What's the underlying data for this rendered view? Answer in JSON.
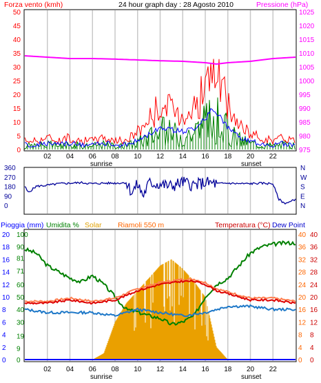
{
  "colors": {
    "background": "#ffffff",
    "frame": "#000000",
    "grid_hour": "#c8c8c8",
    "wind": "#ff0000",
    "wind_avg": "#0000ff",
    "wind_green": "#008000",
    "pressure": "#ff00ff",
    "direction": "#000099",
    "rain": "#0000ff",
    "humidity": "#008000",
    "solar": "#eaa000",
    "windchill": "#ff6600",
    "temperature": "#cc0000",
    "temperature_line": "#ff0000",
    "dewpoint": "#0000cc",
    "dewpoint_line": "#1e90ff"
  },
  "header": {
    "title": "24 hour graph day : 28 Agosto 2010",
    "wind_label": "Forza vento (kmh)",
    "pressure_label": "Pressione (hPa)"
  },
  "mid_panel": {
    "left_ticks": [
      "360",
      "270",
      "180",
      "90",
      "0"
    ],
    "right_ticks": [
      "N",
      "W",
      "S",
      "E",
      "N"
    ]
  },
  "bottom_header": {
    "rain_label": "Pioggia (mm)",
    "humidity_label": "Umidita %",
    "solar_label": "Solar",
    "windchill_label": "Riamoli 550 m",
    "temperature_label": "Temperatura (°C)",
    "dewpoint_label": "Dew Point"
  },
  "x_axis": {
    "top_labels": [
      "02",
      "04",
      "06",
      "08",
      "10",
      "12",
      "14",
      "16",
      "18",
      "20",
      "22"
    ],
    "top_sunrise": "sunrise",
    "top_sunset": "sunset",
    "bottom_labels": [
      "02",
      "04",
      "06",
      "08",
      "10",
      "12",
      "14",
      "16",
      "18",
      "20",
      "22"
    ],
    "bottom_sunrise": "sunrise",
    "bottom_sunset": "sunset"
  },
  "chart_data": [
    {
      "type": "line",
      "title": "24 hour graph day : 28 Agosto 2010",
      "x": {
        "unit": "hour",
        "range": [
          0,
          24
        ],
        "tick_labels": [
          "02",
          "04",
          "06",
          "08",
          "10",
          "12",
          "14",
          "16",
          "18",
          "20",
          "22"
        ]
      },
      "y_left": {
        "label": "Forza vento (kmh)",
        "range": [
          0,
          50
        ],
        "ticks": [
          0,
          5,
          10,
          15,
          20,
          25,
          30,
          35,
          40,
          45,
          50
        ]
      },
      "y_right": {
        "label": "Pressione (hPa)",
        "range": [
          975,
          1025
        ],
        "ticks": [
          975,
          980,
          985,
          990,
          995,
          1000,
          1005,
          1010,
          1015,
          1020,
          1025
        ]
      },
      "series": [
        {
          "name": "Forza vento (kmh)",
          "axis": "left",
          "x": [
            0,
            1,
            2,
            3,
            4,
            5,
            6,
            7,
            8,
            9,
            10,
            11,
            12,
            13,
            14,
            15,
            16,
            16.5,
            17,
            17.5,
            18,
            19,
            20,
            21,
            22,
            23,
            24
          ],
          "values": [
            3,
            3,
            4,
            3,
            4,
            3,
            3,
            4,
            3,
            3,
            6,
            10,
            15,
            13,
            12,
            14,
            20,
            26,
            24,
            20,
            14,
            8,
            5,
            4,
            3,
            4,
            3
          ]
        },
        {
          "name": "Pressione (hPa)",
          "axis": "right",
          "x": [
            0,
            2,
            4,
            6,
            8,
            10,
            12,
            14,
            16,
            17,
            18,
            20,
            22,
            24
          ],
          "values": [
            1009,
            1008.5,
            1008,
            1008,
            1007.8,
            1007.5,
            1007.2,
            1007,
            1006.5,
            1006,
            1006.5,
            1007,
            1008,
            1008.5
          ]
        }
      ]
    },
    {
      "type": "line",
      "x": {
        "unit": "hour",
        "range": [
          0,
          24
        ]
      },
      "y_left": {
        "range": [
          0,
          360
        ],
        "ticks": [
          0,
          90,
          180,
          270,
          360
        ]
      },
      "y_right": {
        "ticks": [
          "N",
          "E",
          "S",
          "W",
          "N"
        ]
      },
      "series": [
        {
          "x": [
            0,
            0.3,
            1,
            2,
            3,
            4,
            5,
            6,
            7,
            8,
            9,
            9.5,
            10,
            10.5,
            11,
            12,
            13,
            14,
            15,
            16,
            17,
            18,
            19,
            20,
            21,
            22,
            22.5,
            23,
            23.5,
            24
          ],
          "values": [
            180,
            120,
            180,
            190,
            205,
            210,
            215,
            205,
            210,
            210,
            215,
            120,
            200,
            90,
            210,
            200,
            180,
            220,
            190,
            215,
            205,
            210,
            205,
            205,
            210,
            205,
            60,
            20,
            30,
            60
          ]
        }
      ]
    },
    {
      "type": "line",
      "x": {
        "unit": "hour",
        "range": [
          0,
          24
        ],
        "tick_labels": [
          "02",
          "04",
          "06",
          "08",
          "10",
          "12",
          "14",
          "16",
          "18",
          "20",
          "22"
        ]
      },
      "y_left_rain": {
        "label": "Pioggia (mm)",
        "range": [
          0,
          20
        ],
        "ticks": [
          0,
          2,
          4,
          6,
          8,
          10,
          12,
          14,
          16,
          18,
          20
        ]
      },
      "y_left_humidity": {
        "label": "Umidita %",
        "range": [
          0,
          100
        ],
        "ticks": [
          0,
          9,
          19,
          30,
          40,
          50,
          60,
          71,
          81,
          90,
          100
        ]
      },
      "y_right_windchill": {
        "label": "Riamoli 550 m",
        "range": [
          0,
          40
        ],
        "ticks": [
          0,
          4,
          8,
          12,
          16,
          20,
          24,
          28,
          32,
          36,
          40
        ]
      },
      "y_right_temperature": {
        "label": "Temperatura (°C)",
        "range": [
          0,
          40
        ],
        "ticks": [
          0,
          4,
          8,
          12,
          16,
          20,
          24,
          28,
          32,
          36,
          40
        ]
      },
      "series": [
        {
          "name": "Umidita %",
          "x": [
            0,
            1,
            2,
            3,
            4,
            5,
            6,
            7,
            8,
            9,
            10,
            11,
            12,
            13,
            14,
            15,
            16,
            17,
            18,
            19,
            20,
            21,
            22,
            23,
            24
          ],
          "values": [
            88,
            85,
            75,
            70,
            65,
            62,
            67,
            60,
            50,
            40,
            38,
            35,
            33,
            28,
            30,
            35,
            50,
            60,
            65,
            75,
            85,
            90,
            92,
            93,
            93
          ]
        },
        {
          "name": "Temperatura (°C)",
          "x": [
            0,
            2,
            4,
            6,
            8,
            10,
            12,
            14,
            15,
            16,
            17,
            18,
            20,
            22,
            24
          ],
          "values": [
            18,
            18,
            19,
            18,
            19,
            22,
            24,
            25,
            25,
            24,
            22,
            21,
            19,
            19,
            18
          ]
        },
        {
          "name": "Dew Point",
          "x": [
            0,
            2,
            4,
            6,
            8,
            10,
            12,
            14,
            16,
            18,
            20,
            22,
            24
          ],
          "values": [
            16,
            15,
            15,
            15,
            14,
            16,
            15,
            14,
            15,
            17,
            17,
            16,
            16
          ]
        },
        {
          "name": "Solar",
          "x": [
            0,
            6,
            7,
            8,
            9,
            10,
            11,
            12,
            13,
            14,
            15,
            16,
            16.5,
            17,
            17.5,
            18,
            19,
            24
          ],
          "values": [
            0,
            0,
            2,
            12,
            18,
            22,
            26,
            30,
            32,
            29,
            25,
            20,
            12,
            4,
            2,
            0,
            0,
            0
          ]
        }
      ]
    }
  ]
}
